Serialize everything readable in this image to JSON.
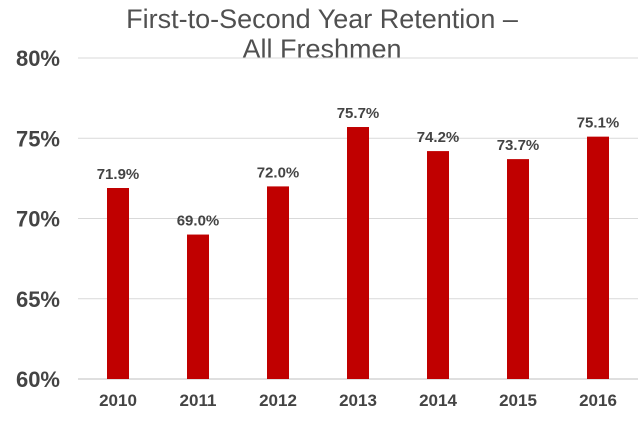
{
  "chart_data": {
    "type": "bar",
    "title_lines": [
      "First-to-Second Year Retention –",
      "All Freshmen"
    ],
    "categories": [
      "2010",
      "2011",
      "2012",
      "2013",
      "2014",
      "2015",
      "2016"
    ],
    "values": [
      71.9,
      69.0,
      72.0,
      75.7,
      74.2,
      73.7,
      75.1
    ],
    "data_labels": [
      "71.9%",
      "69.0%",
      "72.0%",
      "75.7%",
      "74.2%",
      "73.7%",
      "75.1%"
    ],
    "ylim": [
      60,
      80
    ],
    "yticks": [
      60,
      65,
      70,
      75,
      80
    ],
    "ytick_labels": [
      "60%",
      "65%",
      "70%",
      "75%",
      "80%"
    ],
    "xlabel": "",
    "ylabel": "",
    "grid": true,
    "bar_color": "#c00000",
    "grid_color": "#d9d9d9"
  }
}
